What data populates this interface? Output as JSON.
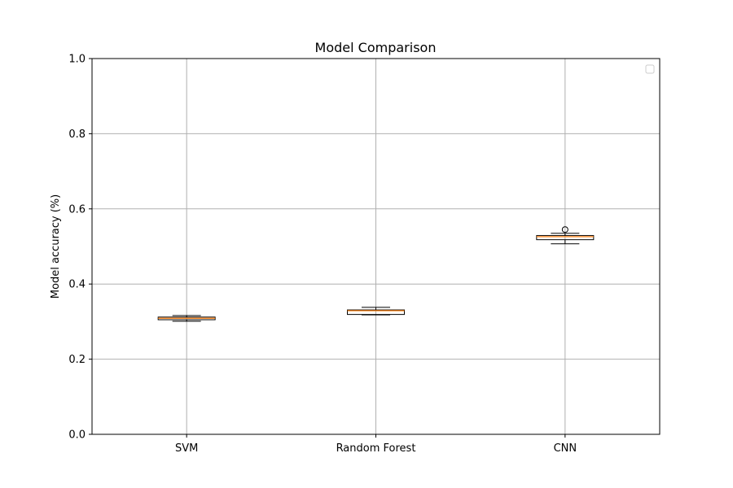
{
  "chart_data": {
    "type": "box",
    "title": "Model Comparison",
    "xlabel": "",
    "ylabel": "Model accuracy (%)",
    "ylim": [
      0,
      1.0
    ],
    "yticks": [
      "0.0",
      "0.2",
      "0.4",
      "0.6",
      "0.8",
      "1.0"
    ],
    "categories": [
      "SVM",
      "Random Forest",
      "CNN"
    ],
    "boxes": [
      {
        "whisker_low": 0.301,
        "q1": 0.305,
        "median": 0.309,
        "q3": 0.312,
        "whisker_high": 0.316,
        "outliers": []
      },
      {
        "whisker_low": 0.318,
        "q1": 0.319,
        "median": 0.329,
        "q3": 0.331,
        "whisker_high": 0.338,
        "outliers": []
      },
      {
        "whisker_low": 0.507,
        "q1": 0.518,
        "median": 0.526,
        "q3": 0.529,
        "whisker_high": 0.535,
        "outliers": [
          0.545
        ]
      }
    ],
    "grid": true,
    "legend": {
      "position": "top-right",
      "entries": []
    },
    "colors": {
      "box": "#000000",
      "median": "#ff7f0e",
      "grid": "#b0b0b0"
    }
  }
}
